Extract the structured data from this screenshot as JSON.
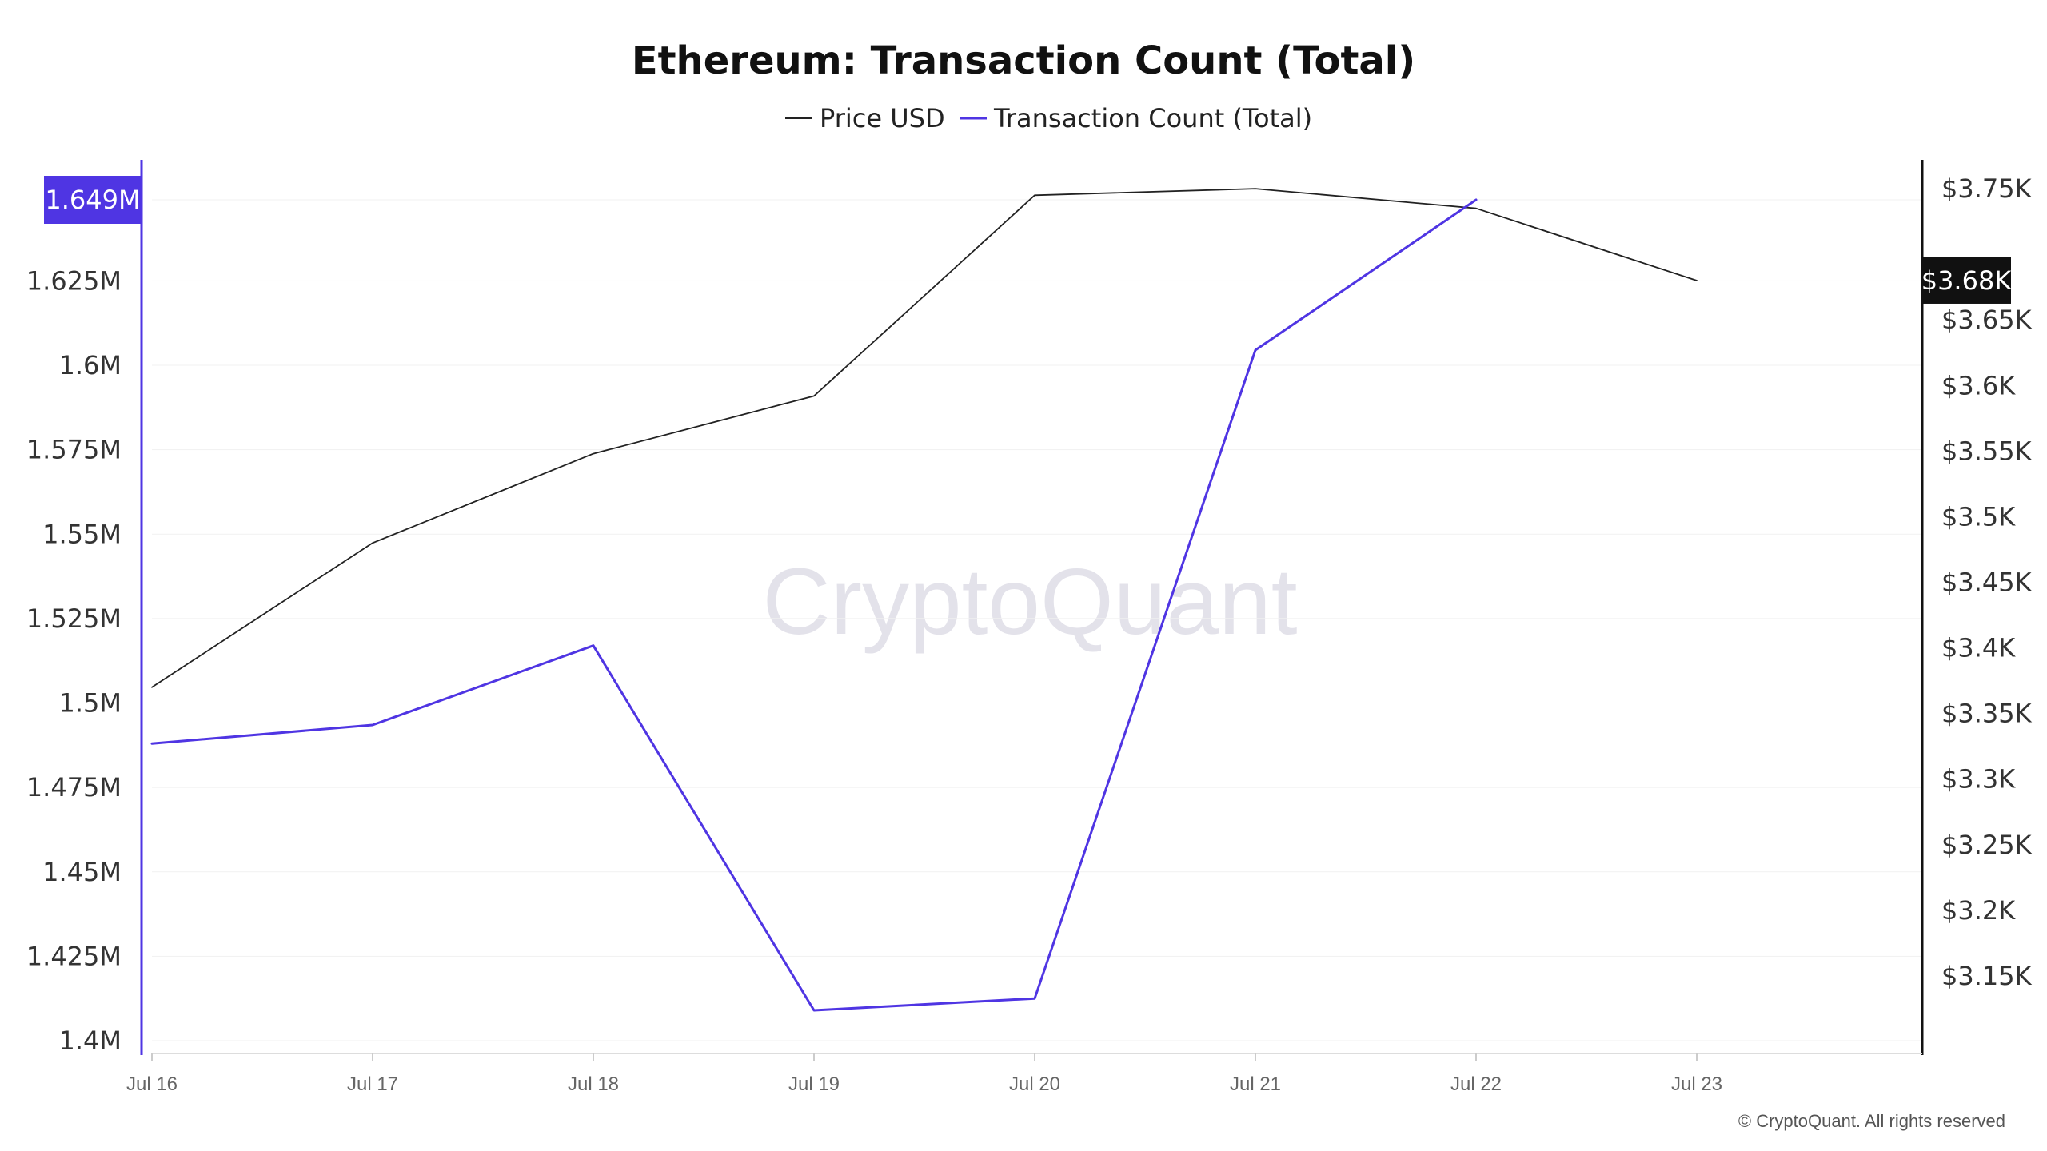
{
  "chart_data": {
    "type": "line",
    "title": "Ethereum: Transaction Count (Total)",
    "x": [
      "Jul 16",
      "Jul 17",
      "Jul 18",
      "Jul 19",
      "Jul 20",
      "Jul 21",
      "Jul 22",
      "Jul 23"
    ],
    "series": [
      {
        "name": "Price USD",
        "axis": "right",
        "color": "#222222",
        "values": [
          3370,
          3480,
          3548,
          3592,
          3745,
          3750,
          3735,
          3680
        ]
      },
      {
        "name": "Transaction Count (Total)",
        "axis": "left",
        "color": "#4f35e3",
        "values": [
          1488000,
          1493500,
          1517000,
          1409000,
          1412500,
          1604500,
          1649000,
          null
        ]
      }
    ],
    "y_left": {
      "ticks": [
        1400000,
        1425000,
        1450000,
        1475000,
        1500000,
        1525000,
        1550000,
        1575000,
        1600000,
        1625000
      ],
      "tick_labels": [
        "1.4M",
        "1.425M",
        "1.45M",
        "1.475M",
        "1.5M",
        "1.525M",
        "1.55M",
        "1.575M",
        "1.6M",
        "1.625M"
      ],
      "range": [
        1400000,
        1649000
      ],
      "current_value": 1649000,
      "current_label": "1.649M"
    },
    "y_right": {
      "ticks": [
        3150,
        3200,
        3250,
        3300,
        3350,
        3400,
        3450,
        3500,
        3550,
        3600,
        3650,
        3750
      ],
      "tick_labels": [
        "$3.15K",
        "$3.2K",
        "$3.25K",
        "$3.3K",
        "$3.35K",
        "$3.4K",
        "$3.45K",
        "$3.5K",
        "$3.55K",
        "$3.6K",
        "$3.65K",
        "$3.75K"
      ],
      "range": [
        3100,
        3800
      ],
      "current_value": 3680,
      "current_label": "$3.68K"
    },
    "grid": true,
    "legend_position": "top-center",
    "watermark": "CryptoQuant",
    "copyright": "© CryptoQuant. All rights reserved"
  },
  "colors": {
    "tx_count": "#4f35e3",
    "price": "#222222",
    "grid": "#f1f1f1"
  }
}
